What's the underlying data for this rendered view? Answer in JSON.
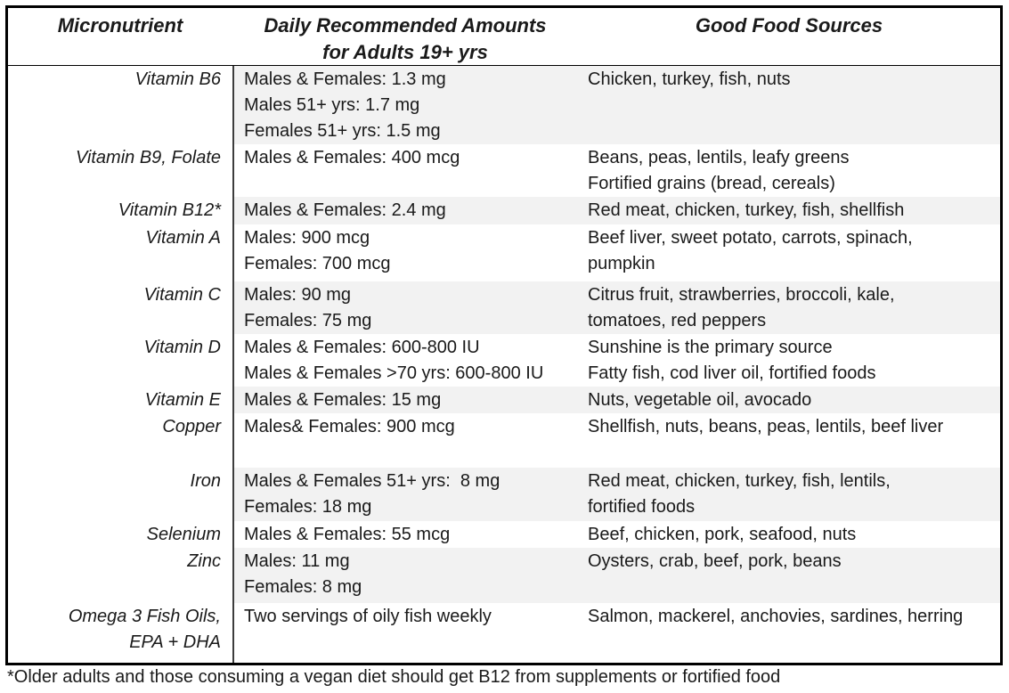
{
  "colors": {
    "row_shade": "#f2f2f2",
    "table_border": "#000000",
    "column_divider": "#3d3d3d",
    "text": "#1a1a1a"
  },
  "table": {
    "header": {
      "micronutrient": "Micronutrient",
      "amounts_line1": "Daily Recommended Amounts",
      "amounts_line2": "for Adults 19+ yrs",
      "sources": "Good Food Sources"
    },
    "rows": [
      {
        "name_lines": [
          "Vitamin B6"
        ],
        "amounts": [
          "Males & Females: 1.3 mg",
          "Males 51+ yrs: 1.7 mg",
          "Females 51+ yrs: 1.5 mg"
        ],
        "sources": [
          "Chicken, turkey, fish, nuts"
        ]
      },
      {
        "name_lines": [
          "Vitamin B9, Folate"
        ],
        "amounts": [
          "Males & Females: 400 mcg"
        ],
        "sources": [
          "Beans, peas, lentils, leafy greens",
          "Fortified grains (bread, cereals)"
        ]
      },
      {
        "name_lines": [
          "Vitamin B12*"
        ],
        "amounts": [
          "Males & Females: 2.4 mg"
        ],
        "sources": [
          "Red meat, chicken, turkey, fish, shellfish"
        ]
      },
      {
        "name_lines": [
          "Vitamin A"
        ],
        "amounts": [
          "Males: 900 mcg",
          "Females: 700 mcg"
        ],
        "sources": [
          "Beef liver, sweet potato, carrots, spinach,",
          "pumpkin"
        ]
      },
      {
        "name_lines": [
          "Vitamin C"
        ],
        "amounts": [
          "Males: 90 mg",
          "Females: 75 mg"
        ],
        "sources": [
          "Citrus fruit, strawberries, broccoli, kale,",
          "tomatoes, red peppers"
        ]
      },
      {
        "name_lines": [
          "Vitamin D"
        ],
        "amounts": [
          "Males & Females: 600-800 IU",
          "Males & Females >70 yrs: 600-800 IU"
        ],
        "sources": [
          "Sunshine is the primary source",
          "Fatty fish, cod liver oil, fortified foods"
        ]
      },
      {
        "name_lines": [
          "Vitamin E"
        ],
        "amounts": [
          "Males & Females: 15 mg"
        ],
        "sources": [
          "Nuts, vegetable oil, avocado"
        ]
      },
      {
        "name_lines": [
          "Copper"
        ],
        "amounts": [
          "Males& Females: 900 mcg"
        ],
        "sources": [
          "Shellfish, nuts, beans, peas, lentils, beef liver"
        ]
      },
      {
        "name_lines": [
          "Iron"
        ],
        "amounts": [
          "Males & Females 51+ yrs:  8 mg",
          "Females: 18 mg"
        ],
        "sources": [
          "Red meat, chicken, turkey, fish, lentils,",
          "fortified foods"
        ]
      },
      {
        "name_lines": [
          "Selenium"
        ],
        "amounts": [
          "Males & Females: 55 mcg"
        ],
        "sources": [
          "Beef, chicken, pork, seafood, nuts"
        ]
      },
      {
        "name_lines": [
          "Zinc"
        ],
        "amounts": [
          "Males: 11 mg",
          "Females: 8 mg"
        ],
        "sources": [
          "Oysters, crab, beef, pork, beans"
        ]
      },
      {
        "name_lines": [
          "Omega 3 Fish Oils,",
          "EPA + DHA"
        ],
        "amounts": [
          "Two servings of oily fish weekly"
        ],
        "sources": [
          "Salmon, mackerel, anchovies, sardines, herring"
        ]
      }
    ]
  },
  "footnote": "*Older adults and those consuming a vegan diet should get B12 from supplements or fortified food"
}
